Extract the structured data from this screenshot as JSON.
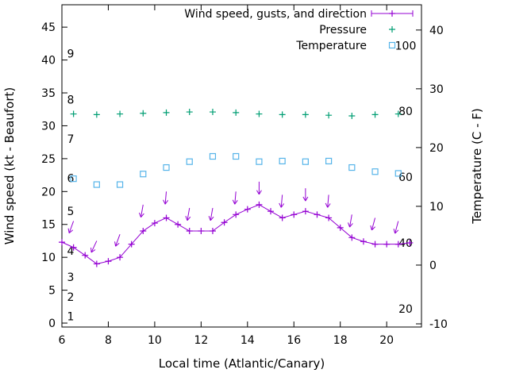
{
  "chart_data": {
    "type": "line",
    "title": "",
    "xlabel": "Local time (Atlantic/Canary)",
    "ylabel_left": "Wind speed (kt - Beaufort)",
    "ylabel_right": "Temperature (C - F)",
    "xlim": [
      6,
      21.5
    ],
    "x_ticks": [
      6,
      8,
      10,
      12,
      14,
      16,
      18,
      20
    ],
    "ylim_left": [
      -0.6,
      48.4
    ],
    "y_ticks_left": [
      0,
      5,
      10,
      15,
      20,
      25,
      30,
      35,
      40,
      45
    ],
    "ylim_right": [
      -10.54,
      44.3
    ],
    "y_ticks_right": [
      -10,
      0,
      10,
      20,
      30,
      40
    ],
    "grid": false,
    "legend_position": "top-right-inside",
    "colors": {
      "wind": "#9400d3",
      "pressure": "#009e73",
      "temperature": "#56b4e9",
      "axis": "#000000",
      "background": "#ffffff"
    },
    "legend": [
      {
        "label": "Wind speed, gusts, and direction",
        "marker": "line-plus",
        "color": "#9400d3"
      },
      {
        "label": "Pressure",
        "marker": "plus",
        "color": "#009e73"
      },
      {
        "label": "Temperature",
        "marker": "square",
        "color": "#56b4e9"
      }
    ],
    "beaufort_scale": {
      "labels": [
        "1",
        "2",
        "3",
        "4",
        "5",
        "6",
        "7",
        "8",
        "9"
      ],
      "positions_kt": [
        1,
        4,
        7,
        11,
        17,
        22,
        28,
        34,
        41
      ]
    },
    "inner_right_scale": {
      "labels": [
        "20",
        "40",
        "60",
        "80",
        "100"
      ],
      "positions_kt": [
        2.2,
        12.2,
        22.2,
        32.2,
        42.2
      ]
    },
    "series": {
      "wind_speed": {
        "name": "Wind speed",
        "axis": "left",
        "color": "#9400d3",
        "x": [
          6,
          6.5,
          7,
          7.5,
          8,
          8.5,
          9,
          9.5,
          10,
          10.5,
          11,
          11.5,
          12,
          12.5,
          13,
          13.5,
          14,
          14.5,
          15,
          15.5,
          16,
          16.5,
          17,
          17.5,
          18,
          18.5,
          19,
          19.5,
          20,
          20.5,
          21
        ],
        "y": [
          12.3,
          11.5,
          10.3,
          9,
          9.4,
          10,
          12,
          14,
          15.2,
          16,
          15,
          14,
          14,
          14,
          15.3,
          16.5,
          17.3,
          18,
          17,
          16,
          16.5,
          17,
          16.5,
          16,
          14.5,
          13,
          12.4,
          12,
          12,
          12,
          12.2
        ]
      },
      "gusts_direction": {
        "name": "Gusts and direction",
        "axis": "left",
        "color": "#9400d3",
        "x": [
          6.5,
          7.5,
          8.5,
          9.5,
          10.5,
          11.5,
          12.5,
          13.5,
          14.5,
          15.5,
          16.5,
          17.5,
          18.5,
          19.5,
          20.5
        ],
        "y": [
          15.5,
          12.5,
          13.5,
          18,
          20,
          17.5,
          17.5,
          20,
          21.5,
          19.5,
          20.5,
          19.5,
          16.5,
          16,
          15.5
        ],
        "direction_deg": [
          200,
          205,
          200,
          190,
          185,
          190,
          190,
          185,
          180,
          185,
          180,
          185,
          190,
          195,
          195
        ]
      },
      "pressure": {
        "name": "Pressure",
        "axis": "left",
        "color": "#009e73",
        "x": [
          6.5,
          7.5,
          8.5,
          9.5,
          10.5,
          11.5,
          12.5,
          13.5,
          14.5,
          15.5,
          16.5,
          17.5,
          18.5,
          19.5,
          20.5
        ],
        "y": [
          31.8,
          31.7,
          31.8,
          31.9,
          32,
          32.1,
          32.1,
          32,
          31.8,
          31.7,
          31.7,
          31.6,
          31.5,
          31.7,
          31.8
        ]
      },
      "temperature": {
        "name": "Temperature",
        "axis": "right",
        "color": "#56b4e9",
        "x": [
          6.5,
          7.5,
          8.5,
          9.5,
          10.5,
          11.5,
          12.5,
          13.5,
          14.5,
          15.5,
          16.5,
          17.5,
          18.5,
          19.5,
          20.5
        ],
        "y": [
          14.7,
          13.7,
          13.7,
          15.5,
          16.6,
          17.6,
          18.5,
          18.5,
          17.6,
          17.7,
          17.6,
          17.7,
          16.6,
          15.9,
          15.6
        ]
      }
    }
  }
}
